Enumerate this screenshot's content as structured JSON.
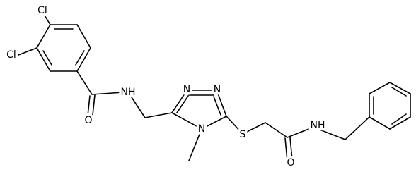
{
  "molecule": {
    "atom_labels": [
      "Cl",
      "Cl",
      "O",
      "NH",
      "N",
      "N",
      "N",
      "S",
      "O",
      "NH"
    ]
  }
}
